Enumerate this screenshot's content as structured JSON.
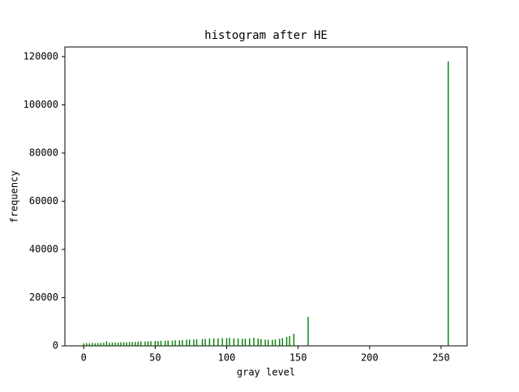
{
  "chart_data": {
    "type": "bar",
    "title": "histogram after HE",
    "x_label": "gray level",
    "y_label": "frequency",
    "x": [
      0,
      2,
      4,
      6,
      8,
      10,
      12,
      14,
      16,
      18,
      20,
      22,
      24,
      26,
      28,
      30,
      32,
      34,
      36,
      38,
      40,
      43,
      45,
      47,
      50,
      52,
      54,
      57,
      59,
      62,
      64,
      67,
      69,
      72,
      74,
      77,
      79,
      83,
      85,
      88,
      91,
      94,
      97,
      100,
      102,
      105,
      108,
      111,
      113,
      116,
      119,
      122,
      124,
      127,
      129,
      132,
      134,
      137,
      139,
      142,
      144,
      147,
      157,
      255
    ],
    "values": [
      1000,
      1100,
      1050,
      1200,
      1100,
      1150,
      1200,
      1300,
      1900,
      1250,
      1300,
      1400,
      1350,
      1450,
      1500,
      1500,
      1550,
      1600,
      1650,
      1700,
      1800,
      1800,
      1900,
      1900,
      2000,
      2000,
      2050,
      2100,
      2200,
      2200,
      2300,
      2300,
      2400,
      2500,
      2600,
      2600,
      2700,
      2800,
      2900,
      3000,
      3100,
      3100,
      3200,
      3200,
      3300,
      3100,
      3000,
      2900,
      3000,
      3100,
      3300,
      3000,
      2800,
      2600,
      2500,
      2500,
      2600,
      2900,
      3200,
      3700,
      4000,
      5000,
      12000,
      118000
    ],
    "color": "#008000",
    "xlim": [
      -13.2,
      268.2
    ],
    "xticks": [
      0,
      50,
      100,
      150,
      200,
      250
    ],
    "ylim": [
      0,
      124000
    ],
    "yticks": [
      0,
      20000,
      40000,
      60000,
      80000,
      100000,
      120000
    ],
    "grid": false
  }
}
